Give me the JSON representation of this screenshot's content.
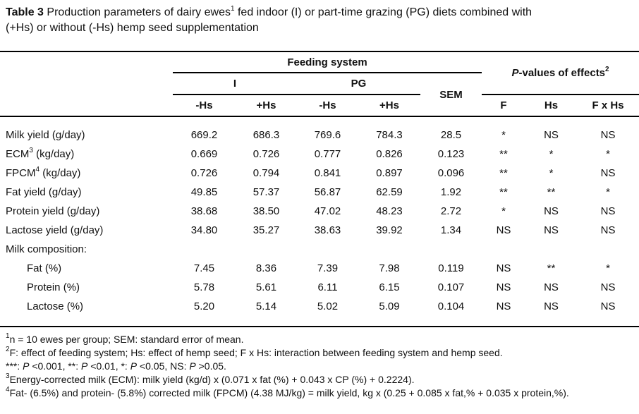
{
  "title": {
    "bold": "Table 3",
    "line1_rest": " Production parameters of dairy ewes",
    "sup": "1",
    "line1_end": " fed indoor (I) or part-time grazing (PG) diets combined with",
    "line2": "(+Hs) or without (-Hs) hemp seed supplementation"
  },
  "header": {
    "feeding_system": "Feeding system",
    "group_i": "I",
    "group_pg": "PG",
    "sem": "SEM",
    "p_italic": "P",
    "p_rest": "-values of effects",
    "p_sup": "2",
    "sub": [
      "-Hs",
      "+Hs",
      "-Hs",
      "+Hs"
    ],
    "effects": [
      "F",
      "Hs",
      "F x Hs"
    ]
  },
  "table": {
    "rows": [
      {
        "label": "Milk yield (g/day)",
        "sup": "",
        "label_rest": "",
        "indent": false,
        "values": [
          "669.2",
          "686.3",
          "769.6",
          "784.3",
          "28.5",
          "*",
          "NS",
          "NS"
        ]
      },
      {
        "label": "ECM",
        "sup": "3",
        "label_rest": " (kg/day)",
        "indent": false,
        "values": [
          "0.669",
          "0.726",
          "0.777",
          "0.826",
          "0.123",
          "**",
          "*",
          "*"
        ]
      },
      {
        "label": "FPCM",
        "sup": "4",
        "label_rest": " (kg/day)",
        "indent": false,
        "values": [
          "0.726",
          "0.794",
          "0.841",
          "0.897",
          "0.096",
          "**",
          "*",
          "NS"
        ]
      },
      {
        "label": "Fat yield (g/day)",
        "sup": "",
        "label_rest": "",
        "indent": false,
        "values": [
          "49.85",
          "57.37",
          "56.87",
          "62.59",
          "1.92",
          "**",
          "**",
          "*"
        ]
      },
      {
        "label": "Protein yield (g/day)",
        "sup": "",
        "label_rest": "",
        "indent": false,
        "values": [
          "38.68",
          "38.50",
          "47.02",
          "48.23",
          "2.72",
          "*",
          "NS",
          "NS"
        ]
      },
      {
        "label": "Lactose yield (g/day)",
        "sup": "",
        "label_rest": "",
        "indent": false,
        "values": [
          "34.80",
          "35.27",
          "38.63",
          "39.92",
          "1.34",
          "NS",
          "NS",
          "NS"
        ]
      },
      {
        "label": "Milk composition:",
        "sup": "",
        "label_rest": "",
        "indent": false,
        "values": [
          "",
          "",
          "",
          "",
          "",
          "",
          "",
          ""
        ]
      },
      {
        "label": "Fat (%)",
        "sup": "",
        "label_rest": "",
        "indent": true,
        "values": [
          "7.45",
          "8.36",
          "7.39",
          "7.98",
          "0.119",
          "NS",
          "**",
          "*"
        ]
      },
      {
        "label": "Protein (%)",
        "sup": "",
        "label_rest": "",
        "indent": true,
        "values": [
          "5.78",
          "5.61",
          "6.11",
          "6.15",
          "0.107",
          "NS",
          "NS",
          "NS"
        ]
      },
      {
        "label": "Lactose (%)",
        "sup": "",
        "label_rest": "",
        "indent": true,
        "values": [
          "5.20",
          "5.14",
          "5.02",
          "5.09",
          "0.104",
          "NS",
          "NS",
          "NS"
        ]
      }
    ]
  },
  "footnotes": [
    {
      "sup": "1",
      "parts": [
        {
          "t": "n = 10 ewes per group; SEM: standard error of mean."
        }
      ]
    },
    {
      "sup": "2",
      "parts": [
        {
          "t": "F: effect of feeding system; Hs: effect of hemp seed; F x Hs: interaction between feeding system and hemp seed."
        }
      ]
    },
    {
      "sup": "",
      "parts": [
        {
          "t": "***: "
        },
        {
          "i": "P"
        },
        {
          "t": " <0.001, **: "
        },
        {
          "i": "P"
        },
        {
          "t": " <0.01, *: "
        },
        {
          "i": "P"
        },
        {
          "t": " <0.05, NS: "
        },
        {
          "i": "P"
        },
        {
          "t": " >0.05."
        }
      ]
    },
    {
      "sup": "3",
      "parts": [
        {
          "t": "Energy-corrected milk (ECM): milk yield (kg/d) x (0.071 x fat (%) + 0.043 x CP (%) + 0.2224)."
        }
      ]
    },
    {
      "sup": "4",
      "parts": [
        {
          "t": "Fat- (6.5%) and protein- (5.8%) corrected milk (FPCM) (4.38 MJ/kg) = milk yield, kg x (0.25 + 0.085 x fat,% + 0.035 x protein,%)."
        }
      ]
    }
  ]
}
